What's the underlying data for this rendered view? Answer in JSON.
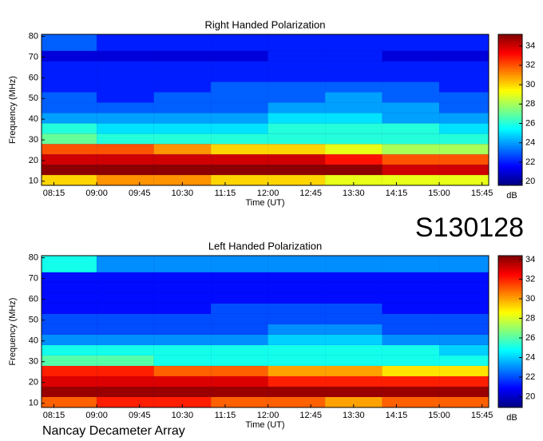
{
  "header": {
    "id": "S130128",
    "footer": "Nancay Decameter Array"
  },
  "chart_data": [
    {
      "type": "heatmap",
      "title": "Right Handed Polarization",
      "x_label": "Time (UT)",
      "y_label": "Frequency (MHz)",
      "colorbar_label": "dB",
      "colormap": "jet",
      "xlim": [
        482,
        952
      ],
      "ylim": [
        8,
        81
      ],
      "clim": [
        19.6,
        35.2
      ],
      "xticks": [
        {
          "value": 495,
          "label": "08:15"
        },
        {
          "value": 540,
          "label": "09:00"
        },
        {
          "value": 585,
          "label": "09:45"
        },
        {
          "value": 630,
          "label": "10:30"
        },
        {
          "value": 675,
          "label": "11:15"
        },
        {
          "value": 720,
          "label": "12:00"
        },
        {
          "value": 765,
          "label": "12:45"
        },
        {
          "value": 810,
          "label": "13:30"
        },
        {
          "value": 855,
          "label": "14:15"
        },
        {
          "value": 900,
          "label": "15:00"
        },
        {
          "value": 945,
          "label": "15:45"
        }
      ],
      "yticks": [
        10,
        20,
        30,
        40,
        50,
        60,
        70,
        80
      ],
      "cticks": [
        20,
        22,
        24,
        26,
        28,
        30,
        32,
        34
      ],
      "x_bins": [
        482,
        540,
        600,
        660,
        720,
        780,
        840,
        900,
        952
      ],
      "y_bins": [
        8,
        13,
        18,
        23,
        28,
        33,
        38,
        43,
        48,
        53,
        58,
        63,
        68,
        73,
        81
      ],
      "values": [
        [
          30,
          31,
          31,
          30,
          30,
          29,
          29,
          29
        ],
        [
          35,
          35,
          35,
          35,
          35,
          35,
          34,
          34
        ],
        [
          34,
          34,
          34,
          34,
          34,
          33,
          32,
          32
        ],
        [
          32,
          32,
          31,
          30,
          30,
          29,
          28,
          28
        ],
        [
          27,
          26,
          26,
          26,
          26,
          26,
          26,
          26
        ],
        [
          26,
          25,
          25,
          25,
          26,
          26,
          26,
          25
        ],
        [
          24,
          24,
          24,
          24,
          25,
          25,
          24,
          24
        ],
        [
          23,
          23,
          23,
          23,
          24,
          24,
          24,
          23
        ],
        [
          23,
          22,
          23,
          23,
          23,
          24,
          23,
          23
        ],
        [
          22,
          22,
          22,
          23,
          23,
          23,
          23,
          22
        ],
        [
          22,
          22,
          22,
          22,
          22,
          22,
          22,
          22
        ],
        [
          22,
          22,
          22,
          22,
          22,
          22,
          22,
          22
        ],
        [
          21,
          21,
          21,
          21,
          22,
          22,
          21,
          21
        ],
        [
          23,
          22,
          22,
          22,
          22,
          22,
          22,
          22
        ]
      ]
    },
    {
      "type": "heatmap",
      "title": "Left Handed Polarization",
      "x_label": "Time (UT)",
      "y_label": "Frequency (MHz)",
      "colorbar_label": "dB",
      "colormap": "jet",
      "xlim": [
        482,
        952
      ],
      "ylim": [
        8,
        81
      ],
      "clim": [
        18.9,
        34.4
      ],
      "xticks": [
        {
          "value": 495,
          "label": "08:15"
        },
        {
          "value": 540,
          "label": "09:00"
        },
        {
          "value": 585,
          "label": "09:45"
        },
        {
          "value": 630,
          "label": "10:30"
        },
        {
          "value": 675,
          "label": "11:15"
        },
        {
          "value": 720,
          "label": "12:00"
        },
        {
          "value": 765,
          "label": "12:45"
        },
        {
          "value": 810,
          "label": "13:30"
        },
        {
          "value": 855,
          "label": "14:15"
        },
        {
          "value": 900,
          "label": "15:00"
        },
        {
          "value": 945,
          "label": "15:45"
        }
      ],
      "yticks": [
        10,
        20,
        30,
        40,
        50,
        60,
        70,
        80
      ],
      "cticks": [
        20,
        22,
        24,
        26,
        28,
        30,
        32,
        34
      ],
      "x_bins": [
        482,
        540,
        600,
        660,
        720,
        780,
        840,
        900,
        952
      ],
      "y_bins": [
        8,
        13,
        18,
        23,
        28,
        33,
        38,
        43,
        48,
        53,
        58,
        63,
        68,
        73,
        81
      ],
      "values": [
        [
          31,
          32,
          32,
          31,
          31,
          30,
          31,
          31
        ],
        [
          34,
          34,
          34,
          34,
          34,
          34,
          34,
          34
        ],
        [
          33,
          33,
          33,
          33,
          32,
          32,
          32,
          32
        ],
        [
          32,
          32,
          31,
          31,
          30,
          30,
          29,
          29
        ],
        [
          26,
          26,
          25,
          25,
          25,
          25,
          25,
          25
        ],
        [
          25,
          25,
          25,
          25,
          25,
          25,
          25,
          24
        ],
        [
          23,
          23,
          23,
          23,
          24,
          24,
          23,
          23
        ],
        [
          22,
          22,
          22,
          22,
          23,
          23,
          22,
          22
        ],
        [
          22,
          22,
          22,
          22,
          22,
          22,
          22,
          22
        ],
        [
          21,
          21,
          21,
          22,
          22,
          22,
          21,
          21
        ],
        [
          21,
          21,
          21,
          21,
          21,
          21,
          21,
          21
        ],
        [
          21,
          21,
          21,
          21,
          21,
          21,
          21,
          21
        ],
        [
          21,
          21,
          21,
          21,
          21,
          21,
          21,
          21
        ],
        [
          25,
          23,
          23,
          23,
          23,
          23,
          23,
          23
        ]
      ]
    }
  ]
}
